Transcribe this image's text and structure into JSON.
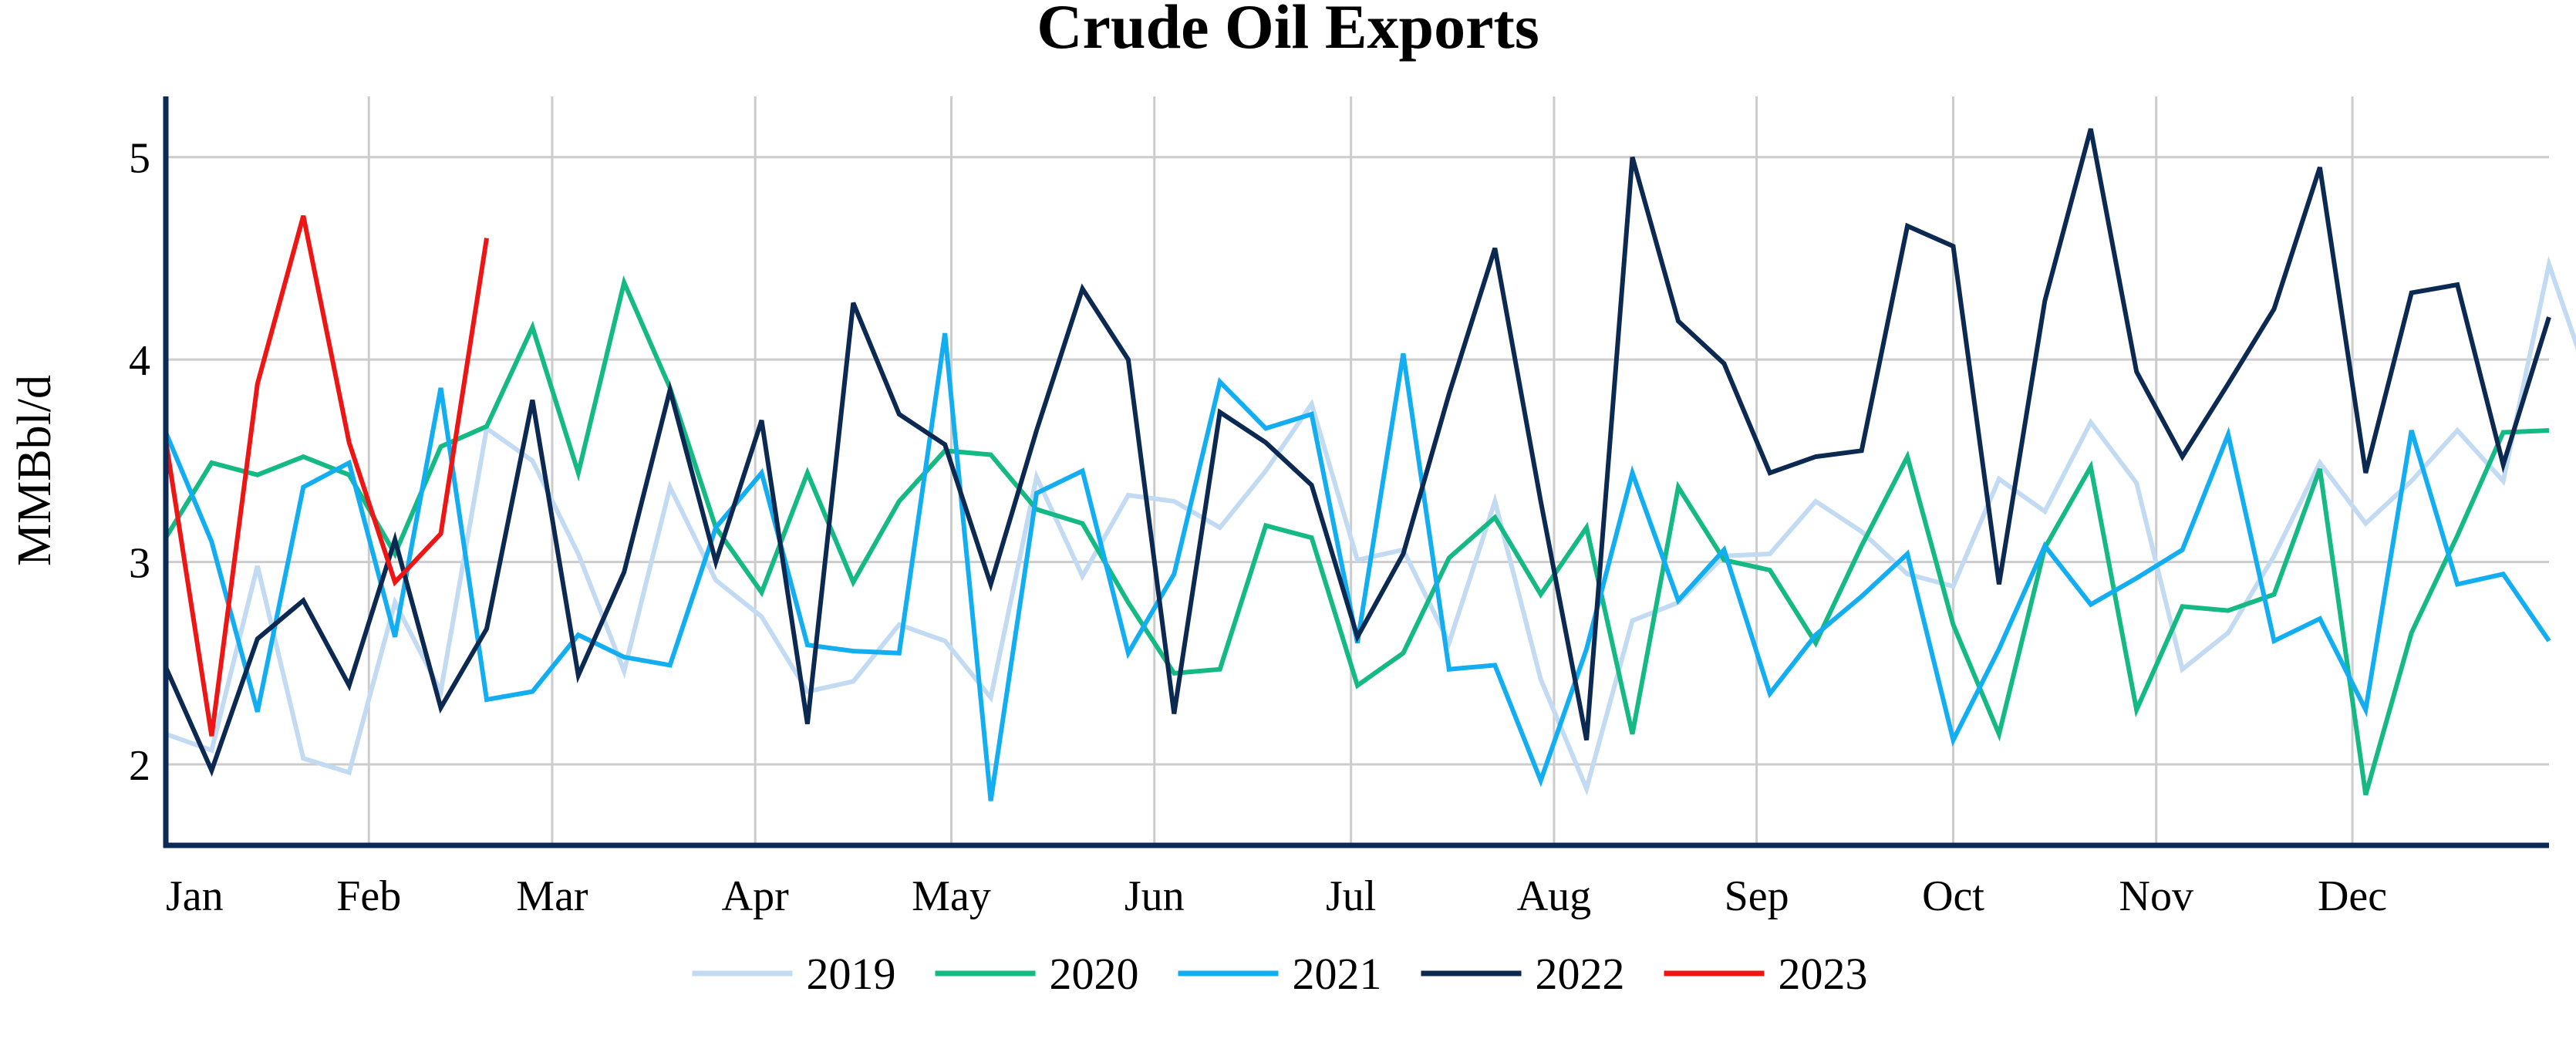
{
  "chart_data": {
    "type": "line",
    "title": "Crude Oil Exports",
    "ylabel": "MMBbl/d",
    "xlabel": "",
    "ylim": [
      1.6,
      5.3
    ],
    "xlim": [
      1,
      53
    ],
    "x_unit": "week of year",
    "yticks": [
      2,
      3,
      4,
      5
    ],
    "grid": true,
    "legend_position": "bottom-center",
    "months": [
      {
        "label": "Jan",
        "week": 1
      },
      {
        "label": "Feb",
        "week": 5.43
      },
      {
        "label": "Mar",
        "week": 9.43
      },
      {
        "label": "Apr",
        "week": 13.86
      },
      {
        "label": "May",
        "week": 18.14
      },
      {
        "label": "Jun",
        "week": 22.57
      },
      {
        "label": "Jul",
        "week": 26.86
      },
      {
        "label": "Aug",
        "week": 31.29
      },
      {
        "label": "Sep",
        "week": 35.71
      },
      {
        "label": "Oct",
        "week": 40
      },
      {
        "label": "Nov",
        "week": 44.43
      },
      {
        "label": "Dec",
        "week": 48.71
      }
    ],
    "series": [
      {
        "name": "2019",
        "color": "#c2dbf3",
        "values": [
          2.15,
          2.07,
          2.98,
          2.03,
          1.96,
          2.8,
          2.36,
          3.66,
          3.5,
          3.04,
          2.46,
          3.37,
          2.91,
          2.73,
          2.36,
          2.41,
          2.69,
          2.61,
          2.33,
          3.42,
          2.93,
          3.33,
          3.3,
          3.17,
          3.45,
          3.78,
          3.01,
          3.06,
          2.6,
          3.3,
          2.42,
          1.88,
          2.71,
          2.8,
          3.03,
          3.04,
          3.3,
          3.15,
          2.94,
          2.88,
          3.41,
          3.25,
          3.69,
          3.39,
          2.47,
          2.65,
          3.03,
          3.49,
          3.19,
          3.4,
          3.65,
          3.4,
          4.47,
          3.81
        ]
      },
      {
        "name": "2020",
        "color": "#14b984",
        "values": [
          3.12,
          3.49,
          3.43,
          3.52,
          3.43,
          3.04,
          3.57,
          3.67,
          4.16,
          3.44,
          4.38,
          3.86,
          3.17,
          2.85,
          3.44,
          2.9,
          3.3,
          3.55,
          3.53,
          3.26,
          3.19,
          2.8,
          2.45,
          2.47,
          3.18,
          3.12,
          2.39,
          2.55,
          3.02,
          3.22,
          2.84,
          3.17,
          2.15,
          3.37,
          3.01,
          2.96,
          2.6,
          3.08,
          3.52,
          2.69,
          2.15,
          3.07,
          3.47,
          2.27,
          2.78,
          2.76,
          2.84,
          3.46,
          1.85,
          2.65,
          3.13,
          3.64,
          3.65
        ]
      },
      {
        "name": "2021",
        "color": "#13aef1",
        "values": [
          3.64,
          3.1,
          2.26,
          3.37,
          3.49,
          2.63,
          3.86,
          2.32,
          2.36,
          2.64,
          2.53,
          2.49,
          3.17,
          3.44,
          2.59,
          2.56,
          2.55,
          4.13,
          1.82,
          3.34,
          3.45,
          2.55,
          2.94,
          3.89,
          3.66,
          3.73,
          2.6,
          4.03,
          2.47,
          2.49,
          1.92,
          2.57,
          3.44,
          2.81,
          3.06,
          2.35,
          2.64,
          2.83,
          3.04,
          2.12,
          2.57,
          3.08,
          2.79,
          2.92,
          3.06,
          3.63,
          2.61,
          2.72,
          2.27,
          3.65,
          2.89,
          2.94,
          2.61
        ]
      },
      {
        "name": "2022",
        "color": "#0c2952",
        "values": [
          2.48,
          1.97,
          2.62,
          2.81,
          2.39,
          3.11,
          2.28,
          2.67,
          3.8,
          2.44,
          2.95,
          3.85,
          3.0,
          3.7,
          2.2,
          4.28,
          3.73,
          3.58,
          2.89,
          3.65,
          4.35,
          4.0,
          2.25,
          3.74,
          3.59,
          3.38,
          2.63,
          3.04,
          3.83,
          4.55,
          3.3,
          2.12,
          5.0,
          4.19,
          3.98,
          3.44,
          3.52,
          3.55,
          4.66,
          4.56,
          2.89,
          4.29,
          5.14,
          3.94,
          3.52,
          3.88,
          4.25,
          4.95,
          3.44,
          4.33,
          4.37,
          3.48,
          4.21
        ]
      },
      {
        "name": "2023",
        "color": "#ee1515",
        "values": [
          3.6,
          2.14,
          3.88,
          4.71,
          3.59,
          2.9,
          3.14,
          4.6
        ]
      }
    ]
  }
}
